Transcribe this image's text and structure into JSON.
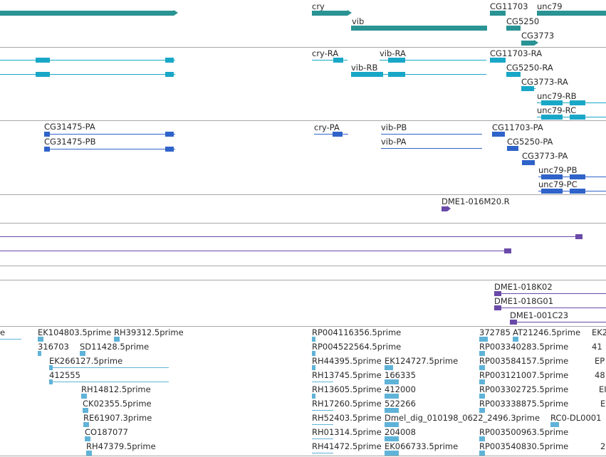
{
  "colors": {
    "gene": "#2a9393",
    "mrna": "#19a7c7",
    "protein": "#2f63c9",
    "clone": "#6a4aa8",
    "est": "#5fb3d8",
    "separator": "#a8a8a8",
    "text": "#2a2a2a"
  },
  "genes": {
    "labels": [
      "cry",
      "vib",
      "CG11703",
      "unc79",
      "CG5250",
      "CG3773"
    ]
  },
  "transcripts": {
    "labels": [
      "cry-RA",
      "vib-RA",
      "CG11703-RA",
      "vib-RB",
      "CG5250-RA",
      "CG3773-RA",
      "unc79-RB",
      "unc79-RC"
    ]
  },
  "proteins": {
    "labels": [
      "CG31475-PA",
      "CG31475-PB",
      "cry-PA",
      "vib-PB",
      "CG11703-PA",
      "vib-PA",
      "CG5250-PA",
      "CG3773-PA",
      "unc79-PB",
      "unc79-PC"
    ]
  },
  "clones_a": {
    "labels": [
      "DME1-016M20.R"
    ]
  },
  "clones_b": {
    "labels": [
      "DME1-018K02",
      "DME1-018G01",
      "DME1-001C23"
    ]
  },
  "ests": {
    "labels": [
      "e",
      "EK104803.5prime",
      "RH39312.5prime",
      "316703",
      "SD11428.5prime",
      "EK266127.5prime",
      "412555",
      "RH14812.5prime",
      "CK02355.5prime",
      "RE61907.3prime",
      "CO187077",
      "RH47379.5prime",
      "RP004116356.5prime",
      "RP004522564.5prime",
      "RH44395.5prime",
      "EK124727.5prime",
      "RH13745.5prime",
      "166335",
      "RH13605.5prime",
      "412000",
      "RH17260.5prime",
      "522266",
      "RH52403.5prime",
      "Dmel_dig_010198_0622_2496.3prime",
      "RH01314.5prime",
      "204008",
      "RH41472.5prime",
      "EK066733.5prime",
      "372785",
      "AT21246.5prime",
      "EK2",
      "RP003340283.5prime",
      "41",
      "RP003584157.5prime",
      "EP",
      "RP003121007.5prime",
      "48",
      "RP003302725.5prime",
      "EI",
      "RP003338875.5prime",
      "E",
      "RC0-DL0001",
      "RP003500963.5prime",
      "RP003540830.5prime",
      "2"
    ]
  }
}
